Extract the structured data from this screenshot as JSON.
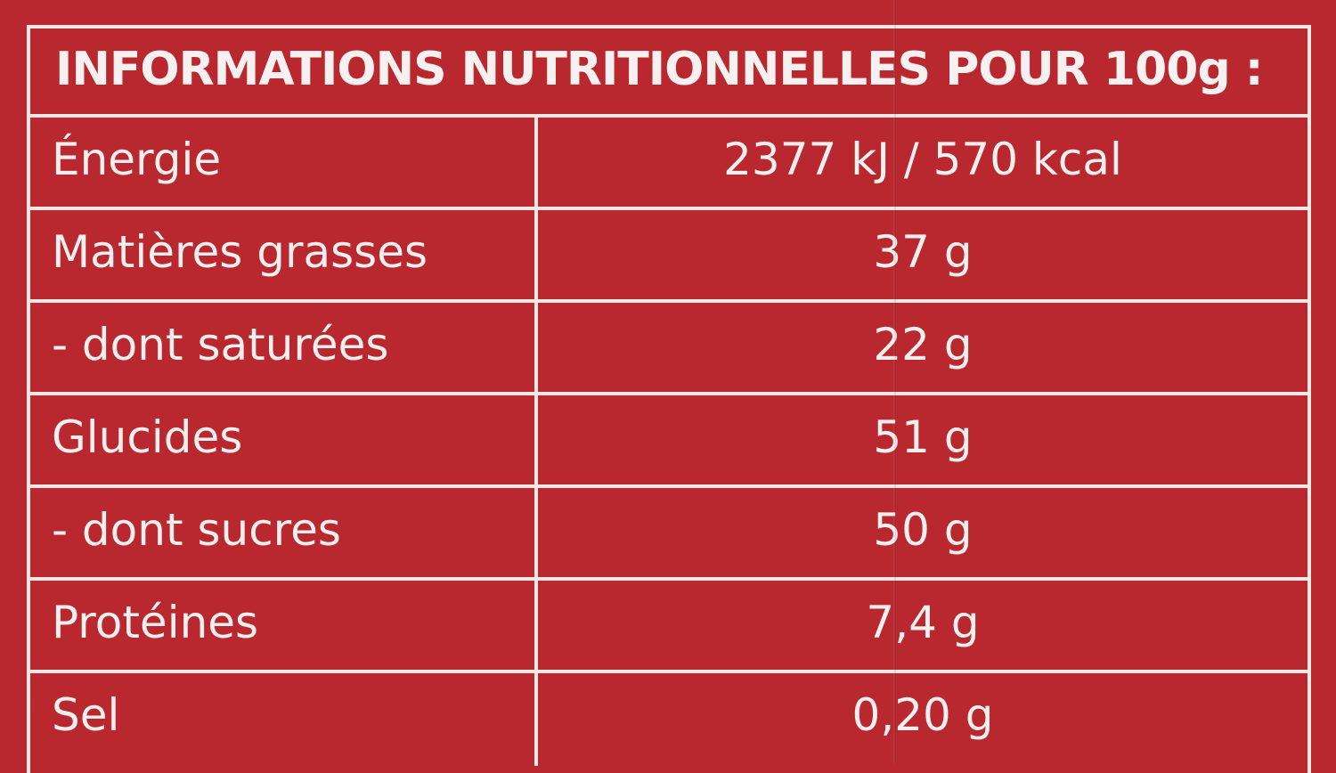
{
  "title": "INFORMATIONS NUTRITIONNELLES POUR 100g :",
  "rows": [
    {
      "label": "Énergie",
      "value": "2377 kJ / 570 kcal"
    },
    {
      "label": "Matières grasses",
      "value": "37 g"
    },
    {
      "label": "- dont saturées",
      "value": "22 g"
    },
    {
      "label": "Glucides",
      "value": "51 g"
    },
    {
      "label": "- dont sucres",
      "value": "50 g"
    },
    {
      "label": "Protéines",
      "value": "7,4 g"
    },
    {
      "label": "Sel",
      "value": "0,20 g"
    }
  ],
  "colors": {
    "background": "#b8282e",
    "lines": "#efe6e6",
    "text": "#f4eeee"
  }
}
